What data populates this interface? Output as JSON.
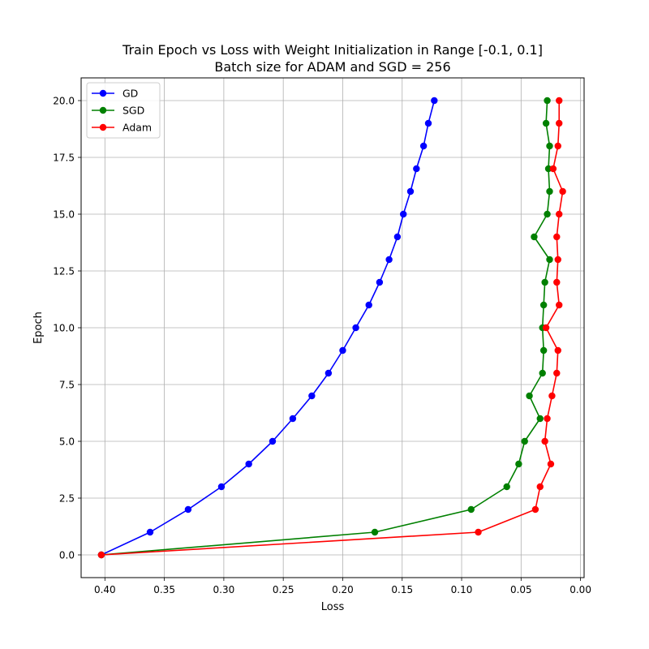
{
  "chart_data": {
    "type": "line",
    "title": "Train Epoch vs Loss with Weight Initialization in Range [-0.1, 0.1]",
    "subtitle": "Batch size for ADAM and SGD = 256",
    "xlabel": "Loss",
    "ylabel": "Epoch",
    "xlim": [
      0.42,
      -0.003
    ],
    "ylim": [
      -1.0,
      21.0
    ],
    "x_inverted": true,
    "grid": true,
    "legend_position": "upper-left",
    "xticks": [
      0.4,
      0.35,
      0.3,
      0.25,
      0.2,
      0.15,
      0.1,
      0.05,
      0.0
    ],
    "xtick_labels": [
      "0.40",
      "0.35",
      "0.30",
      "0.25",
      "0.20",
      "0.15",
      "0.10",
      "0.05",
      "0.00"
    ],
    "yticks": [
      0,
      2.5,
      5,
      7.5,
      10,
      12.5,
      15,
      17.5,
      20
    ],
    "ytick_labels": [
      "0.0",
      "2.5",
      "5.0",
      "7.5",
      "10.0",
      "12.5",
      "15.0",
      "17.5",
      "20.0"
    ],
    "series": [
      {
        "name": "GD",
        "color": "#0000ff",
        "epochs": [
          0,
          1,
          2,
          3,
          4,
          5,
          6,
          7,
          8,
          9,
          10,
          11,
          12,
          13,
          14,
          15,
          16,
          17,
          18,
          19,
          20
        ],
        "loss": [
          0.403,
          0.362,
          0.33,
          0.302,
          0.279,
          0.259,
          0.242,
          0.226,
          0.212,
          0.2,
          0.189,
          0.178,
          0.169,
          0.161,
          0.154,
          0.149,
          0.143,
          0.138,
          0.132,
          0.128,
          0.123
        ]
      },
      {
        "name": "SGD",
        "color": "#008000",
        "epochs": [
          0,
          1,
          2,
          3,
          4,
          5,
          6,
          7,
          8,
          9,
          10,
          11,
          12,
          13,
          14,
          15,
          16,
          17,
          18,
          19,
          20
        ],
        "loss": [
          0.403,
          0.173,
          0.092,
          0.062,
          0.052,
          0.047,
          0.034,
          0.043,
          0.032,
          0.031,
          0.032,
          0.031,
          0.03,
          0.026,
          0.039,
          0.028,
          0.026,
          0.027,
          0.026,
          0.029,
          0.028
        ]
      },
      {
        "name": "Adam",
        "color": "#ff0000",
        "epochs": [
          0,
          1,
          2,
          3,
          4,
          5,
          6,
          7,
          8,
          9,
          10,
          11,
          12,
          13,
          14,
          15,
          16,
          17,
          18,
          19,
          20
        ],
        "loss": [
          0.403,
          0.086,
          0.038,
          0.034,
          0.025,
          0.03,
          0.028,
          0.024,
          0.02,
          0.019,
          0.029,
          0.018,
          0.02,
          0.019,
          0.02,
          0.018,
          0.015,
          0.023,
          0.019,
          0.018,
          0.018
        ]
      }
    ]
  }
}
